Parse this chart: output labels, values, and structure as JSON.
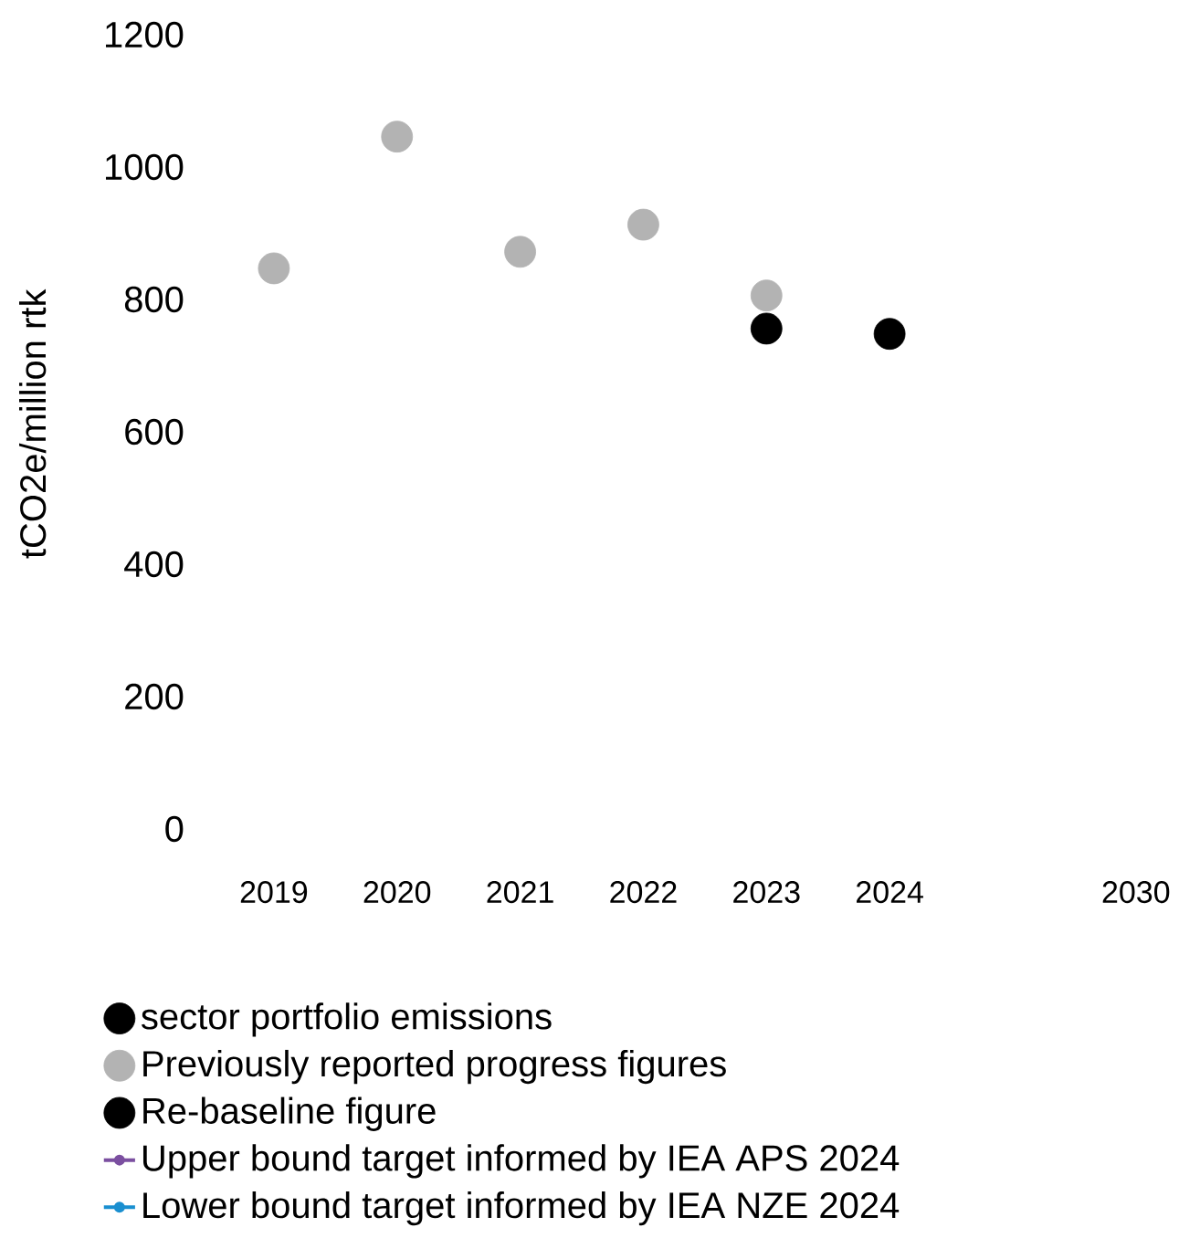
{
  "chart_data": {
    "type": "scatter",
    "ylabel": "tCO2e/million rtk",
    "categories": [
      "2019",
      "2020",
      "2021",
      "2022",
      "2023",
      "2024",
      null,
      "2030"
    ],
    "series": [
      {
        "name": "sector portfolio emissions",
        "color": "#000000",
        "values": [
          null,
          null,
          null,
          null,
          null,
          748,
          null,
          null
        ]
      },
      {
        "name": "Previously reported progress figures",
        "color": "#b3b3b3",
        "values": [
          847,
          1046,
          872,
          913,
          806,
          null,
          null,
          null
        ]
      },
      {
        "name": "Re-baseline figure",
        "color": "#000000",
        "values": [
          null,
          null,
          null,
          null,
          756,
          null,
          null,
          null
        ]
      },
      {
        "name": "Upper bound target informed by IEA APS 2024",
        "type": "line",
        "color": "#7b4fa0",
        "values": [
          null,
          null,
          null,
          null,
          null,
          null,
          null,
          null
        ]
      },
      {
        "name": "Lower bound target informed by IEA NZE 2024",
        "type": "line",
        "color": "#1a8fd0",
        "values": [
          null,
          null,
          null,
          null,
          null,
          null,
          null,
          null
        ]
      }
    ],
    "ylim": [
      0,
      1200
    ],
    "yticks": [
      0,
      200,
      400,
      600,
      800,
      1000,
      1200
    ],
    "legend": "bottom",
    "marker": "circle"
  }
}
